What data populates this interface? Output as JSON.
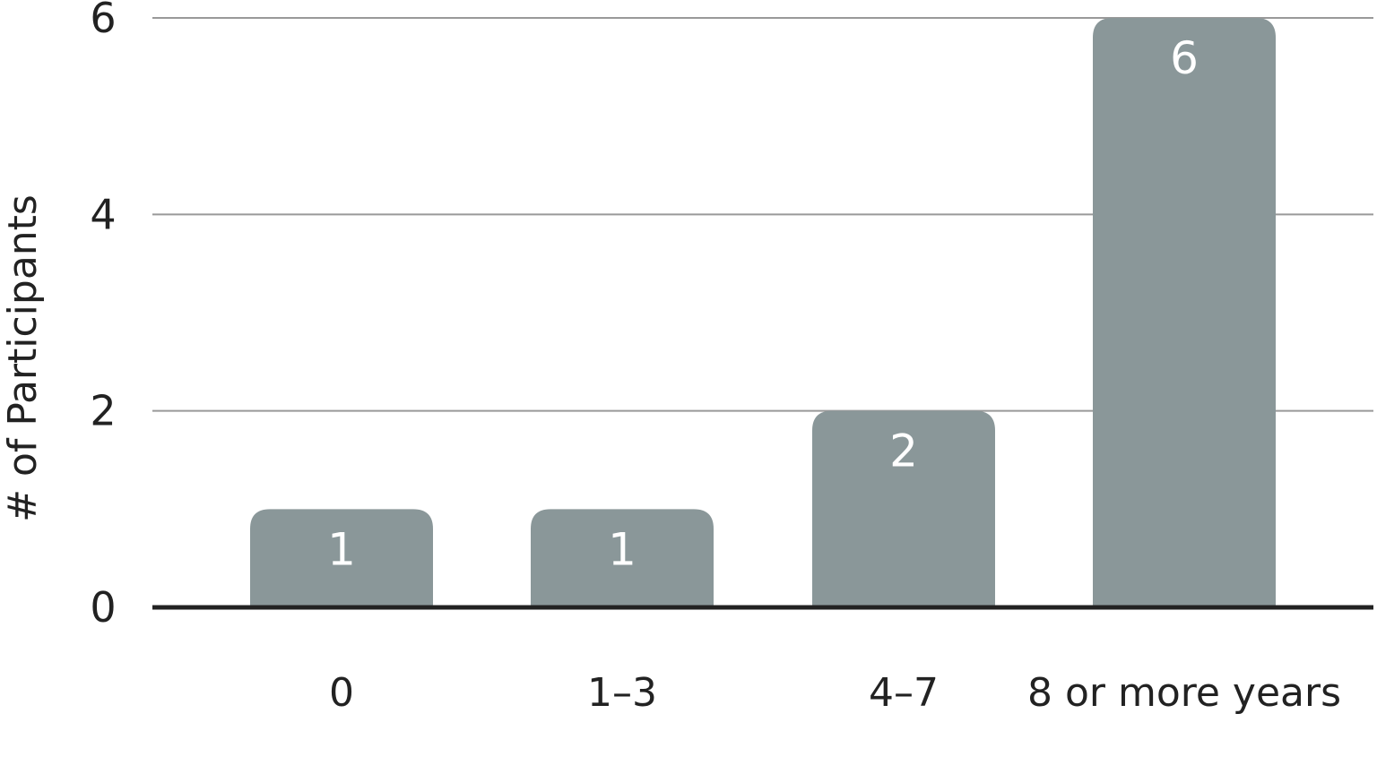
{
  "chart_data": {
    "type": "bar",
    "categories": [
      "0",
      "1–3",
      "4–7",
      "8 or more years"
    ],
    "values": [
      1,
      1,
      2,
      6
    ],
    "data_labels": [
      "1",
      "1",
      "2",
      "6"
    ],
    "title": "",
    "xlabel": "",
    "ylabel": "# of Participants",
    "ylim": [
      0,
      6
    ],
    "yticks": [
      0,
      2,
      4,
      6
    ],
    "ytick_labels": [
      "0",
      "2",
      "4",
      "6"
    ],
    "grid": true,
    "legend": "none"
  },
  "colors": {
    "bar": "#8a9799",
    "gridline": "#999999",
    "baseline": "#222222",
    "text": "#222222",
    "bar_label": "#ffffff"
  }
}
